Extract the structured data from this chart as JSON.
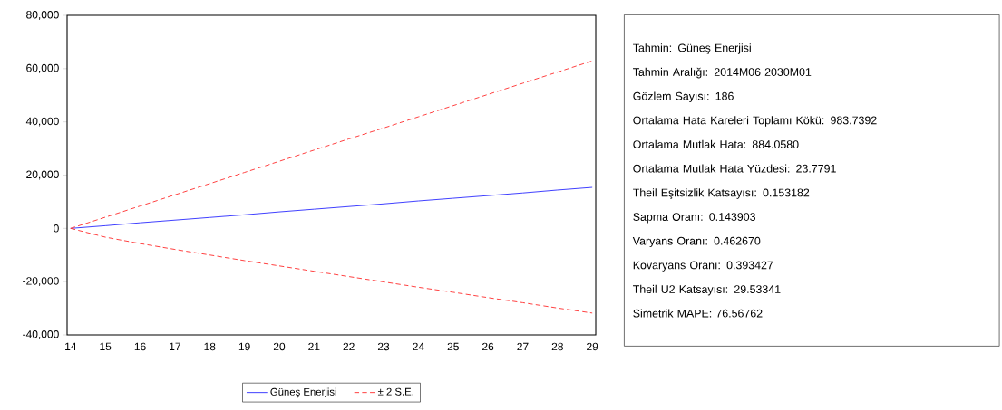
{
  "chart_data": [
    {
      "type": "line",
      "categories": [
        "14",
        "15",
        "16",
        "17",
        "18",
        "19",
        "20",
        "21",
        "22",
        "23",
        "24",
        "25",
        "26",
        "27",
        "28",
        "29"
      ],
      "series": [
        {
          "name": "Güneş Enerjisi",
          "color": "#3333ff",
          "line_style": "solid",
          "values": [
            0,
            1000,
            2100,
            3100,
            4100,
            5100,
            6200,
            7200,
            8200,
            9200,
            10300,
            11300,
            12300,
            13300,
            14400,
            15400
          ]
        },
        {
          "name": "± 2 S.E.",
          "color": "#ff3333",
          "line_style": "dashed",
          "values": [
            0,
            4200,
            8400,
            12600,
            16800,
            21000,
            25200,
            29400,
            33600,
            37700,
            41900,
            46100,
            50300,
            54500,
            58700,
            62900
          ]
        },
        {
          "color": "#ff3333",
          "line_style": "dashed",
          "values": [
            0,
            -3300,
            -5700,
            -7900,
            -10000,
            -12100,
            -14100,
            -16100,
            -18100,
            -20100,
            -22100,
            -24000,
            -26000,
            -27900,
            -29900,
            -31800
          ]
        }
      ],
      "ylim": [
        -40000,
        80000
      ],
      "yticks": [
        {
          "value": -40000,
          "label": "-40,000"
        },
        {
          "value": -20000,
          "label": "-20,000"
        },
        0,
        {
          "value": 20000,
          "label": "20,000"
        },
        {
          "value": 40000,
          "label": "40,000"
        },
        {
          "value": 60000,
          "label": "60,000"
        },
        {
          "value": 80000,
          "label": "80,000"
        }
      ],
      "grid": false,
      "legend": "bottom",
      "marker": "none"
    },
    {
      "type": "other",
      "annotations": [
        "Tahmin: Güneş Enerjisi",
        "Tahmin Aralığı: 2014M06 2030M01",
        "Gözlem Sayısı: 186",
        "Ortalama Hata Kareleri Toplamı Kökü: 983.7392",
        "Ortalama Mutlak Hata: 884.0580",
        "Ortalama Mutlak Hata Yüzdesi: 23.7791",
        "Theil Eşitsizlik Katsayısı: 0.153182",
        "Sapma Oranı: 0.143903",
        "Varyans Oranı: 0.462670",
        "Kovaryans Oranı: 0.393427",
        "Theil U2 Katsayısı: 29.53341",
        "Simetrik MAPE: 76.56762"
      ]
    }
  ]
}
